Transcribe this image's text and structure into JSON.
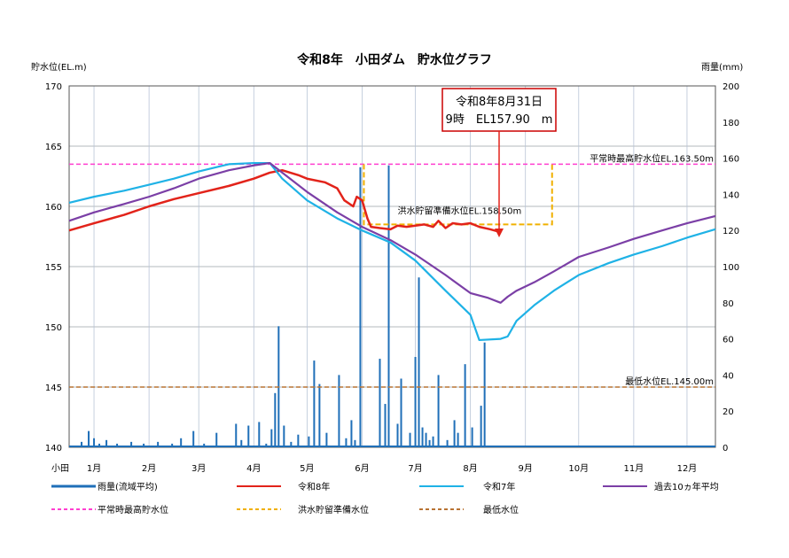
{
  "title": "令和8年　小田ダム　貯水位グラフ",
  "left_axis_label": "貯水位(EL.m)",
  "right_axis_label": "雨量(mm)",
  "x_prefix": "小田",
  "callout": {
    "line1": "令和8年8月31日",
    "line2": "9時　EL157.90　m"
  },
  "colors": {
    "rain": "#1f6fb8",
    "r8": "#e2231a",
    "r7": "#1fb2e6",
    "avg10": "#7b3fa6",
    "max_normal": "#ff3fd0",
    "flood_reserve": "#f0b000",
    "min_level": "#b87333",
    "grid": "#9aa0a6",
    "callout_border": "#cc0000"
  },
  "legend": [
    {
      "key": "rain",
      "label": "雨量(流域平均)",
      "style": "solid-thick"
    },
    {
      "key": "r8",
      "label": "令和8年",
      "style": "solid"
    },
    {
      "key": "r7",
      "label": "令和7年",
      "style": "solid"
    },
    {
      "key": "avg10",
      "label": "過去10ヵ年平均",
      "style": "solid"
    },
    {
      "key": "max_normal",
      "label": "平常時最高貯水位",
      "style": "dashed"
    },
    {
      "key": "flood_reserve",
      "label": "洪水貯留準備水位",
      "style": "dashed"
    },
    {
      "key": "min_level",
      "label": "最低水位",
      "style": "dashed"
    }
  ],
  "chart_data": {
    "type": "line",
    "title": "令和8年　小田ダム　貯水位グラフ",
    "x_axis": {
      "type": "month-day",
      "start": "1/1",
      "end": "12/31",
      "tick_labels": [
        "1月",
        "2月",
        "3月",
        "4月",
        "5月",
        "6月",
        "7月",
        "8月",
        "9月",
        "10月",
        "11月",
        "12月"
      ]
    },
    "ylabel": "貯水位(EL.m)",
    "ylim": [
      140,
      170
    ],
    "yticks": [
      140,
      145,
      150,
      155,
      160,
      165,
      170
    ],
    "y2label": "雨量(mm)",
    "y2lim": [
      0,
      200
    ],
    "y2ticks": [
      0,
      20,
      40,
      60,
      80,
      100,
      120,
      140,
      160,
      180,
      200
    ],
    "grid": true,
    "reference_lines": [
      {
        "key": "max_normal",
        "label": "平常時最高貯水位EL.163.50m",
        "value": 163.5
      },
      {
        "key": "min_level",
        "label": "最低水位EL.145.00m",
        "value": 145.0
      }
    ],
    "flood_reserve": {
      "label": "洪水貯留準備水位EL.158.50m",
      "x": [
        "6/16",
        "6/16",
        "9/30",
        "9/30"
      ],
      "y": [
        163.5,
        158.5,
        158.5,
        163.5
      ]
    },
    "series": [
      {
        "key": "r8",
        "name": "令和8年",
        "x": [
          "1/1",
          "1/15",
          "2/1",
          "2/15",
          "3/1",
          "3/15",
          "4/1",
          "4/15",
          "4/24",
          "5/1",
          "5/10",
          "5/15",
          "5/25",
          "6/1",
          "6/5",
          "6/10",
          "6/12",
          "6/15",
          "6/18",
          "6/20",
          "6/25",
          "7/1",
          "7/5",
          "7/10",
          "7/15",
          "7/20",
          "7/25",
          "7/28",
          "8/1",
          "8/5",
          "8/10",
          "8/15",
          "8/20",
          "8/26",
          "8/31"
        ],
        "y": [
          158.0,
          158.6,
          159.3,
          160.0,
          160.6,
          161.1,
          161.7,
          162.3,
          162.8,
          163.0,
          162.6,
          162.3,
          162.0,
          161.5,
          160.5,
          160.0,
          160.8,
          160.5,
          159.0,
          158.3,
          158.2,
          158.1,
          158.4,
          158.3,
          158.4,
          158.5,
          158.3,
          158.8,
          158.2,
          158.6,
          158.5,
          158.6,
          158.3,
          158.1,
          157.9
        ]
      },
      {
        "key": "r7",
        "name": "令和7年",
        "x": [
          "1/1",
          "1/15",
          "2/1",
          "2/15",
          "3/1",
          "3/15",
          "4/1",
          "4/15",
          "4/24",
          "5/1",
          "5/15",
          "6/1",
          "6/15",
          "7/1",
          "7/15",
          "8/1",
          "8/15",
          "8/20",
          "9/1",
          "9/5",
          "9/10",
          "9/20",
          "10/1",
          "10/15",
          "11/1",
          "11/15",
          "12/1",
          "12/15",
          "12/31"
        ],
        "y": [
          160.3,
          160.8,
          161.3,
          161.8,
          162.3,
          162.9,
          163.5,
          163.6,
          163.6,
          162.3,
          160.5,
          159.0,
          158.0,
          157.0,
          155.5,
          153.0,
          151.0,
          148.9,
          149.0,
          149.2,
          150.5,
          151.8,
          153.0,
          154.3,
          155.3,
          156.0,
          156.7,
          157.4,
          158.1
        ]
      },
      {
        "key": "avg10",
        "name": "過去10ヵ年平均",
        "x": [
          "1/1",
          "1/15",
          "2/1",
          "2/15",
          "3/1",
          "3/15",
          "4/1",
          "4/15",
          "4/24",
          "5/1",
          "5/15",
          "6/1",
          "6/15",
          "7/1",
          "7/15",
          "8/1",
          "8/15",
          "8/25",
          "9/1",
          "9/5",
          "9/10",
          "9/20",
          "10/1",
          "10/15",
          "11/1",
          "11/15",
          "12/1",
          "12/15",
          "12/31"
        ],
        "y": [
          158.8,
          159.5,
          160.2,
          160.8,
          161.5,
          162.3,
          163.0,
          163.4,
          163.6,
          162.8,
          161.2,
          159.5,
          158.3,
          157.2,
          156.0,
          154.3,
          152.8,
          152.4,
          152.0,
          152.5,
          153.0,
          153.7,
          154.6,
          155.8,
          156.6,
          157.3,
          158.0,
          158.6,
          159.2
        ]
      }
    ],
    "rain": {
      "key": "rain",
      "name": "雨量(流域平均)",
      "x": [
        "1/8",
        "1/12",
        "1/15",
        "1/18",
        "1/22",
        "1/28",
        "2/5",
        "2/12",
        "2/20",
        "2/28",
        "3/5",
        "3/12",
        "3/18",
        "3/25",
        "4/5",
        "4/8",
        "4/12",
        "4/18",
        "4/22",
        "4/25",
        "4/27",
        "4/29",
        "5/2",
        "5/6",
        "5/10",
        "5/16",
        "5/19",
        "5/22",
        "5/26",
        "6/2",
        "6/6",
        "6/9",
        "6/11",
        "6/14",
        "6/25",
        "6/28",
        "6/30",
        "7/5",
        "7/7",
        "7/12",
        "7/15",
        "7/17",
        "7/19",
        "7/21",
        "7/23",
        "7/25",
        "7/28",
        "8/2",
        "8/6",
        "8/8",
        "8/12",
        "8/16",
        "8/21",
        "8/23"
      ],
      "y": [
        3,
        9,
        5,
        2,
        4,
        2,
        3,
        2,
        3,
        2,
        5,
        9,
        2,
        8,
        13,
        4,
        12,
        14,
        2,
        10,
        30,
        67,
        12,
        3,
        7,
        6,
        48,
        35,
        8,
        40,
        5,
        15,
        4,
        155,
        49,
        24,
        156,
        13,
        38,
        8,
        50,
        94,
        11,
        8,
        4,
        6,
        40,
        4,
        15,
        8,
        46,
        11,
        23,
        58
      ]
    }
  }
}
